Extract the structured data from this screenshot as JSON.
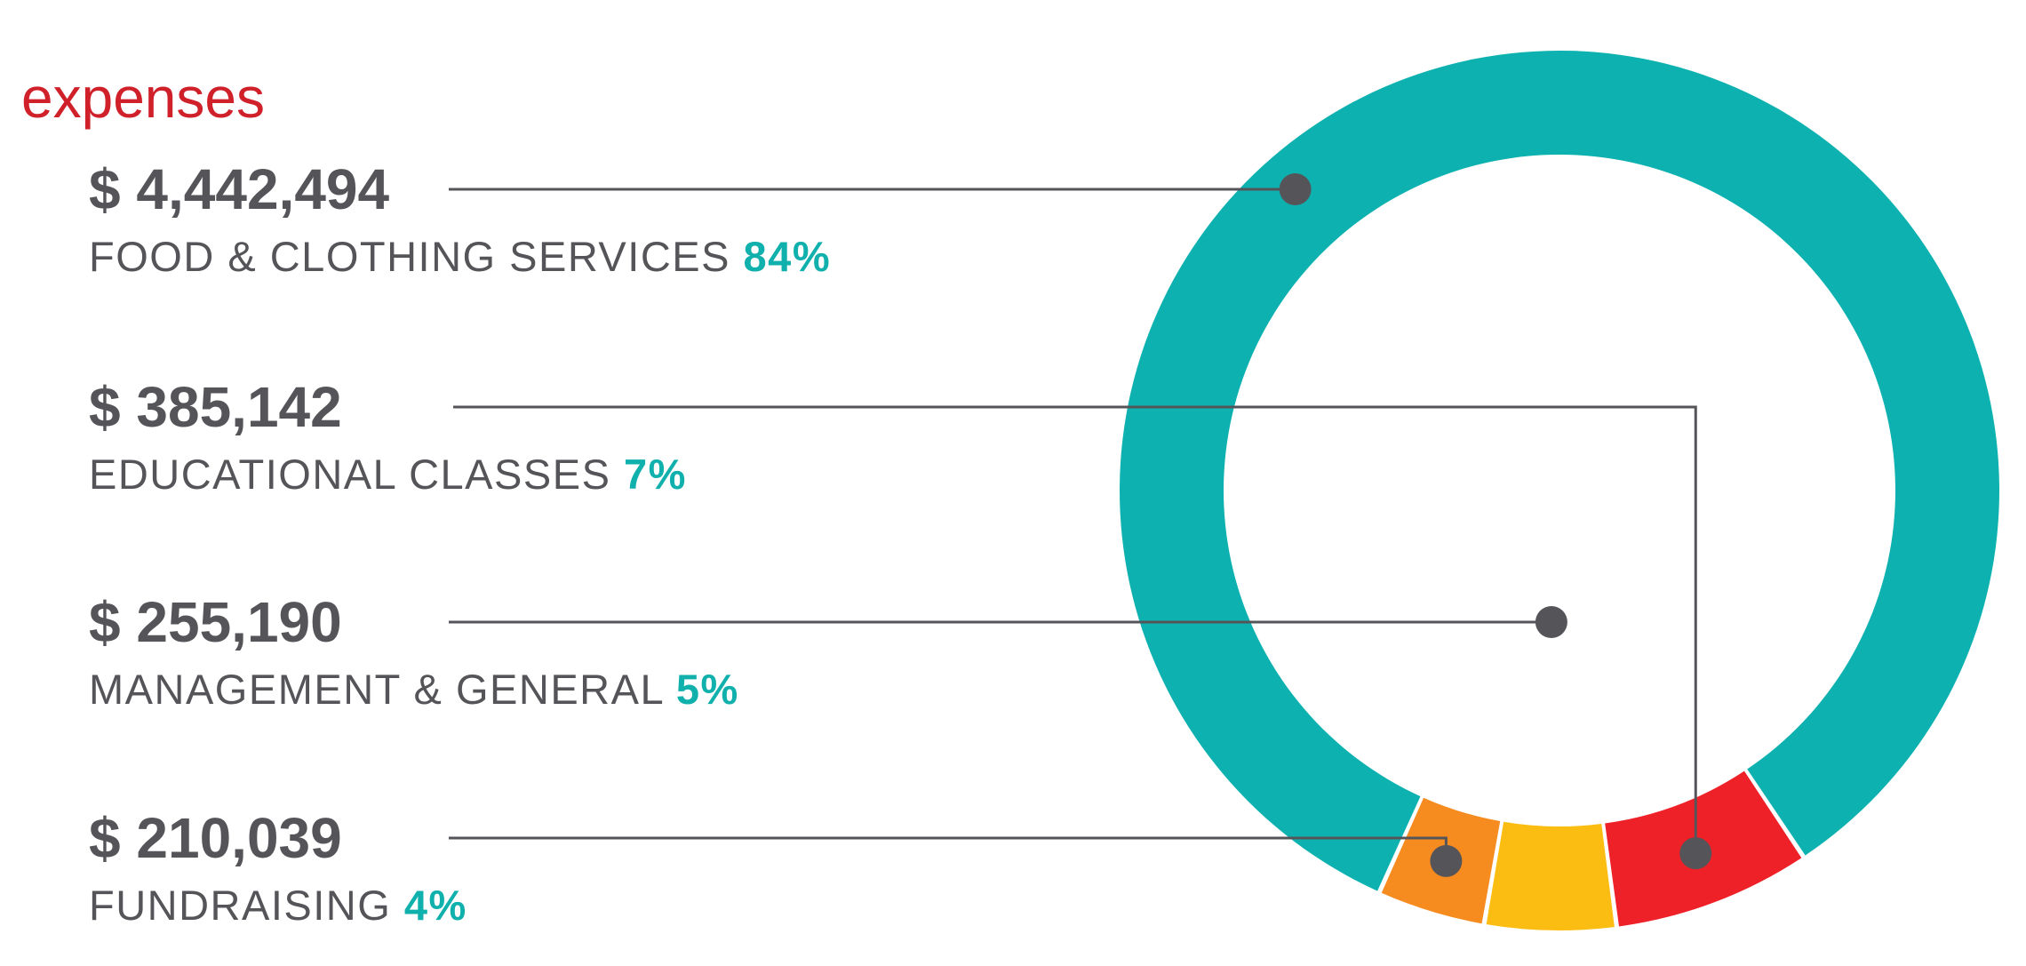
{
  "colors": {
    "title": "#d0202a",
    "text": "#555559",
    "percent": "#10b0ad",
    "leader": "#555559"
  },
  "chart_data": {
    "type": "pie",
    "style": "donut",
    "title": "expenses",
    "series": [
      {
        "amount": "$ 4,442,494",
        "label": "FOOD & CLOTHING SERVICES",
        "percent": "84%",
        "value": 4442494,
        "color": "#0db2b0"
      },
      {
        "amount": "$ 385,142",
        "label": "EDUCATIONAL CLASSES",
        "percent": "7%",
        "value": 385142,
        "color": "#ee2128"
      },
      {
        "amount": "$ 255,190",
        "label": "MANAGEMENT & GENERAL",
        "percent": "5%",
        "value": 255190,
        "color": "#fcbd13"
      },
      {
        "amount": "$ 210,039",
        "label": "FUNDRAISING",
        "percent": "4%",
        "value": 210039,
        "color": "#f68b1f"
      }
    ]
  }
}
